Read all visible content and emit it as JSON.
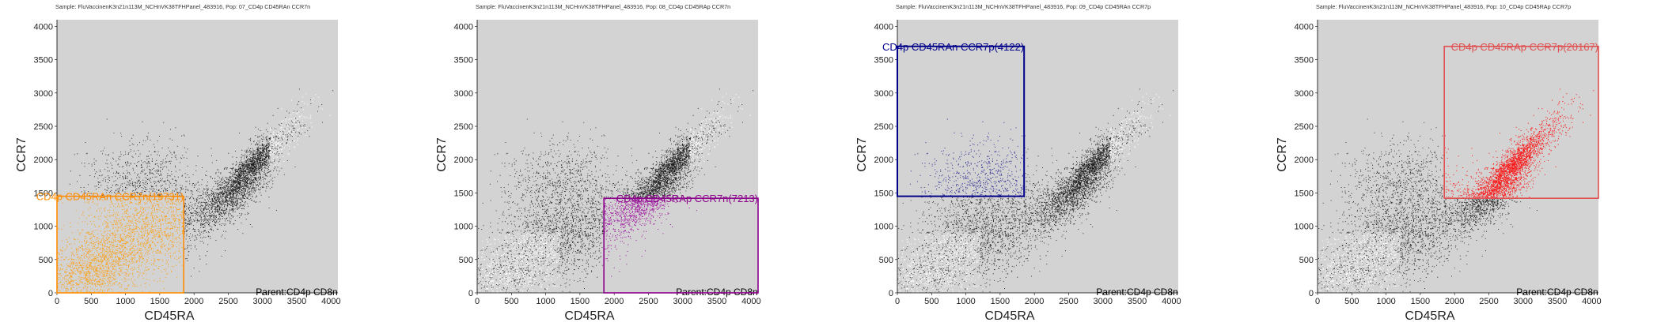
{
  "chart_data": [
    {
      "type": "scatter",
      "title": "Sample: FluVaccinenK3n21n113M_NCHnVK38TFHPanel_483916, Pop: 07_CD4p CD45RAn CCR7n",
      "xlabel": "CD45RA",
      "ylabel": "CCR7",
      "xlim": [
        0,
        4100
      ],
      "ylim": [
        0,
        4100
      ],
      "xticks": [
        0,
        500,
        1000,
        1500,
        2000,
        2500,
        3000,
        3500,
        4000
      ],
      "yticks": [
        0,
        500,
        1000,
        1500,
        2000,
        2500,
        3000,
        3500,
        4000
      ],
      "grid": false,
      "parent_label": "Parent:CD4p CD8n",
      "gate": {
        "label": "CD4p CD45RAn CCR7n(19731)",
        "x": [
          0,
          1850
        ],
        "y": [
          0,
          1450
        ],
        "color": "#ff8c00"
      }
    },
    {
      "type": "scatter",
      "title": "Sample: FluVaccinenK3n21n113M_NCHnVK38TFHPanel_483916, Pop: 08_CD4p CD45RAp CCR7n",
      "xlabel": "CD45RA",
      "ylabel": "CCR7",
      "xlim": [
        0,
        4100
      ],
      "ylim": [
        0,
        4100
      ],
      "xticks": [
        0,
        500,
        1000,
        1500,
        2000,
        2500,
        3000,
        3500,
        4000
      ],
      "yticks": [
        0,
        500,
        1000,
        1500,
        2000,
        2500,
        3000,
        3500,
        4000
      ],
      "grid": false,
      "parent_label": "Parent:CD4p CD8n",
      "gate": {
        "label": "CD4p CD45RAp CCR7n(7213)",
        "x": [
          1850,
          4100
        ],
        "y": [
          0,
          1420
        ],
        "color": "#8b008b"
      }
    },
    {
      "type": "scatter",
      "title": "Sample: FluVaccinenK3n21n113M_NCHnVK38TFHPanel_483916, Pop: 09_CD4p CD45RAn CCR7p",
      "xlabel": "CD45RA",
      "ylabel": "CCR7",
      "xlim": [
        0,
        4100
      ],
      "ylim": [
        0,
        4100
      ],
      "xticks": [
        0,
        500,
        1000,
        1500,
        2000,
        2500,
        3000,
        3500,
        4000
      ],
      "yticks": [
        0,
        500,
        1000,
        1500,
        2000,
        2500,
        3000,
        3500,
        4000
      ],
      "grid": false,
      "parent_label": "Parent:CD4p CD8n",
      "gate": {
        "label": "CD4p CD45RAn CCR7p(4122)",
        "x": [
          0,
          1850
        ],
        "y": [
          1450,
          3700
        ],
        "color": "#00008b"
      }
    },
    {
      "type": "scatter",
      "title": "Sample: FluVaccinenK3n21n113M_NCHnVK38TFHPanel_483916, Pop: 10_CD4p CD45RAp CCR7p",
      "xlabel": "CD45RA",
      "ylabel": "CCR7",
      "xlim": [
        0,
        4100
      ],
      "ylim": [
        0,
        4100
      ],
      "xticks": [
        0,
        500,
        1000,
        1500,
        2000,
        2500,
        3000,
        3500,
        4000
      ],
      "yticks": [
        0,
        500,
        1000,
        1500,
        2000,
        2500,
        3000,
        3500,
        4000
      ],
      "grid": false,
      "parent_label": "Parent:CD4p CD8n",
      "gate": {
        "label": "CD4p CD45RAp CCR7p(20167)",
        "x": [
          1850,
          4100
        ],
        "y": [
          1420,
          3700
        ],
        "color": "#e05050"
      }
    }
  ],
  "colors": {
    "plot_background": "#d3d3d3",
    "ungated_events": "#000000",
    "background_events": "#ffffff",
    "highlight_orange": "#ff9900",
    "highlight_purple": "#990099",
    "highlight_navy": "#1a1a8c",
    "highlight_red": "#ff0000"
  }
}
